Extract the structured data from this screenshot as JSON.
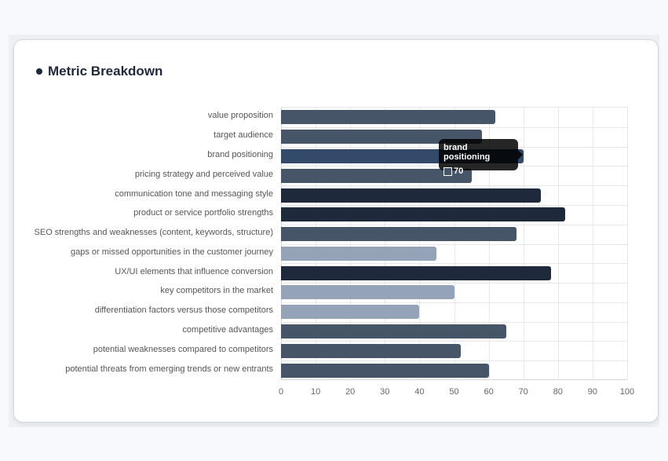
{
  "card": {
    "title": "Metric Breakdown"
  },
  "chart_data": {
    "type": "bar",
    "orientation": "horizontal",
    "title": "Metric Breakdown",
    "xlabel": "",
    "ylabel": "",
    "xlim": [
      0,
      100
    ],
    "x_ticks": [
      0,
      10,
      20,
      30,
      40,
      50,
      60,
      70,
      80,
      90,
      100
    ],
    "grid": true,
    "legend": "none",
    "categories": [
      "value proposition",
      "target audience",
      "brand positioning",
      "pricing strategy and perceived value",
      "communication tone and messaging style",
      "product or service portfolio strengths",
      "SEO strengths and weaknesses (content, keywords, structure)",
      "gaps or missed opportunities in the customer journey",
      "UX/UI elements that influence conversion",
      "key competitors in the market",
      "differentiation factors versus those competitors",
      "competitive advantages",
      "potential weaknesses compared to competitors",
      "potential threats from emerging trends or new entrants"
    ],
    "values": [
      62,
      58,
      70,
      55,
      75,
      82,
      68,
      45,
      78,
      50,
      40,
      65,
      52,
      60
    ],
    "colors": [
      "#475569",
      "#475569",
      "#334a6b",
      "#475569",
      "#1e293b",
      "#1e293b",
      "#475569",
      "#94a3b8",
      "#1e293b",
      "#94a3b8",
      "#94a3b8",
      "#475569",
      "#475569",
      "#475569"
    ]
  },
  "tooltip": {
    "title": "brand positioning",
    "value": "70"
  }
}
